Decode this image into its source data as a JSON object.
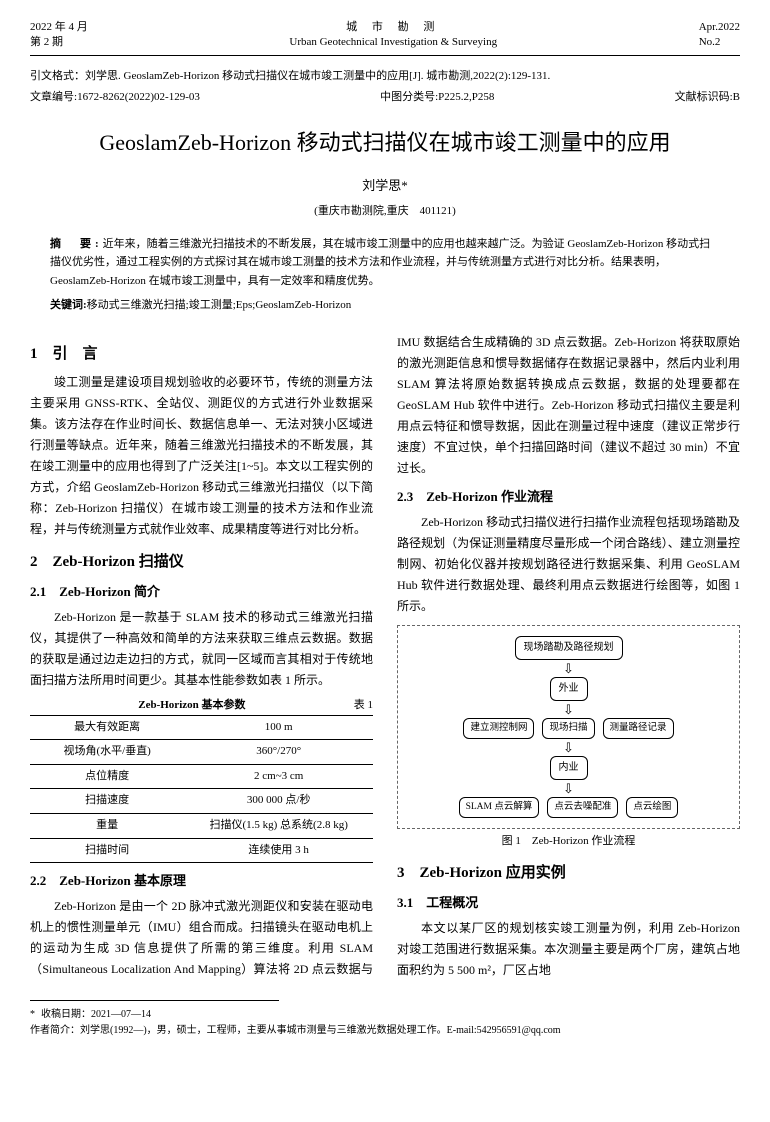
{
  "header": {
    "left_line1": "2022 年 4 月",
    "left_line2": "第 2 期",
    "center_cn": "城 市 勘 测",
    "center_en": "Urban Geotechnical Investigation & Surveying",
    "right_line1": "Apr.2022",
    "right_line2": "No.2"
  },
  "meta": {
    "citation": "引文格式：刘学思. GeoslamZeb-Horizon 移动式扫描仪在城市竣工测量中的应用[J]. 城市勘测,2022(2):129-131.",
    "article_no_label": "文章编号:",
    "article_no": "1672-8262(2022)02-129-03",
    "clc_label": "中图分类号:",
    "clc": "P225.2,P258",
    "doc_code_label": "文献标识码:",
    "doc_code": "B"
  },
  "title": "GeoslamZeb-Horizon 移动式扫描仪在城市竣工测量中的应用",
  "author": "刘学思*",
  "affiliation": "(重庆市勘测院,重庆　401121)",
  "abstract": {
    "label": "摘　要:",
    "text": "近年来，随着三维激光扫描技术的不断发展，其在城市竣工测量中的应用也越来越广泛。为验证 GeoslamZeb-Horizon 移动式扫描仪优劣性，通过工程实例的方式探讨其在城市竣工测量的技术方法和作业流程，并与传统测量方式进行对比分析。结果表明，GeoslamZeb-Horizon 在城市竣工测量中，具有一定效率和精度优势。"
  },
  "keywords": {
    "label": "关键词:",
    "text": "移动式三维激光扫描;竣工测量;Eps;GeoslamZeb-Horizon"
  },
  "sections": {
    "s1": {
      "heading": "1　引　言",
      "p1": "竣工测量是建设项目规划验收的必要环节，传统的测量方法主要采用 GNSS-RTK、全站仪、测距仪的方式进行外业数据采集。该方法存在作业时间长、数据信息单一、无法对狭小区域进行测量等缺点。近年来，随着三维激光扫描技术的不断发展，其在竣工测量中的应用也得到了广泛关注[1~5]。本文以工程实例的方式，介绍 GeoslamZeb-Horizon 移动式三维激光扫描仪（以下简称：Zeb-Horizon 扫描仪）在城市竣工测量的技术方法和作业流程，并与传统测量方式就作业效率、成果精度等进行对比分析。"
    },
    "s2": {
      "heading": "2　Zeb-Horizon 扫描仪"
    },
    "s21": {
      "heading": "2.1　Zeb-Horizon 简介",
      "p1": "Zeb-Horizon 是一款基于 SLAM 技术的移动式三维激光扫描仪，其提供了一种高效和简单的方法来获取三维点云数据。数据的获取是通过边走边扫的方式，就同一区域而言其相对于传统地面扫描方法所用时间更少。其基本性能参数如表 1 所示。",
      "table_caption_left": "Zeb-Horizon 基本参数",
      "table_caption_right": "表 1",
      "table_rows": [
        [
          "最大有效距离",
          "100 m"
        ],
        [
          "视场角(水平/垂直)",
          "360°/270°"
        ],
        [
          "点位精度",
          "2 cm~3 cm"
        ],
        [
          "扫描速度",
          "300 000 点/秒"
        ],
        [
          "重量",
          "扫描仪(1.5 kg) 总系统(2.8 kg)"
        ],
        [
          "扫描时间",
          "连续使用 3 h"
        ]
      ]
    },
    "s22": {
      "heading": "2.2　Zeb-Horizon 基本原理",
      "p1": "Zeb-Horizon 是由一个 2D 脉冲式激光测距仪和安装在驱动电机上的惯性测量单元（IMU）组合而成。扫描镜头在驱动电机上的运动为生成 3D 信息提供了所需的第三维度。利用 SLAM（Simultaneous Localization And Mapping）算法将 2D 点云数据与 IMU 数据结合生成精确的 3D 点云数据。Zeb-Horizon 将获取原始的激光测距信息和惯导数据储存在数据记录器中，然后内业利用 SLAM 算法将原始数据转换成点云数据，数据的处理要都在 GeoSLAM Hub 软件中进行。Zeb-Horizon 移动式扫描仪主要是利用点云特征和惯导数据，因此在测量过程中速度（建议正常步行速度）不宜过快，单个扫描回路时间（建议不超过 30 min）不宜过长。"
    },
    "s23": {
      "heading": "2.3　Zeb-Horizon 作业流程",
      "p1": "Zeb-Horizon 移动式扫描仪进行扫描作业流程包括现场踏勘及路径规划（为保证测量精度尽量形成一个闭合路线）、建立测量控制网、初始化仪器并按规划路径进行数据采集、利用 GeoSLAM Hub 软件进行数据处理、最终利用点云数据进行绘图等，如图 1 所示。",
      "fig_caption": "图 1　Zeb-Horizon 作业流程"
    },
    "s3": {
      "heading": "3　Zeb-Horizon 应用实例"
    },
    "s31": {
      "heading": "3.1　工程概况",
      "p1": "本文以某厂区的规划核实竣工测量为例，利用 Zeb-Horizon 对竣工范围进行数据采集。本次测量主要是两个厂房，建筑占地面积约为 5 500 m²，厂区占地"
    }
  },
  "flowchart": {
    "n1": "现场踏勘及路径规划",
    "n2": "外业",
    "n3": "建立测控制网",
    "n4": "现场扫描",
    "n5": "测量路径记录",
    "n6": "内业",
    "n7": "SLAM 点云解算",
    "n8": "点云去噪配准",
    "n9": "点云绘图"
  },
  "footnote": {
    "received": "收稿日期：2021—07—14",
    "author_bio": "作者简介：刘学思(1992—)，男，硕士，工程师，主要从事城市测量与三维激光数据处理工作。E-mail:542956591@qq.com"
  }
}
